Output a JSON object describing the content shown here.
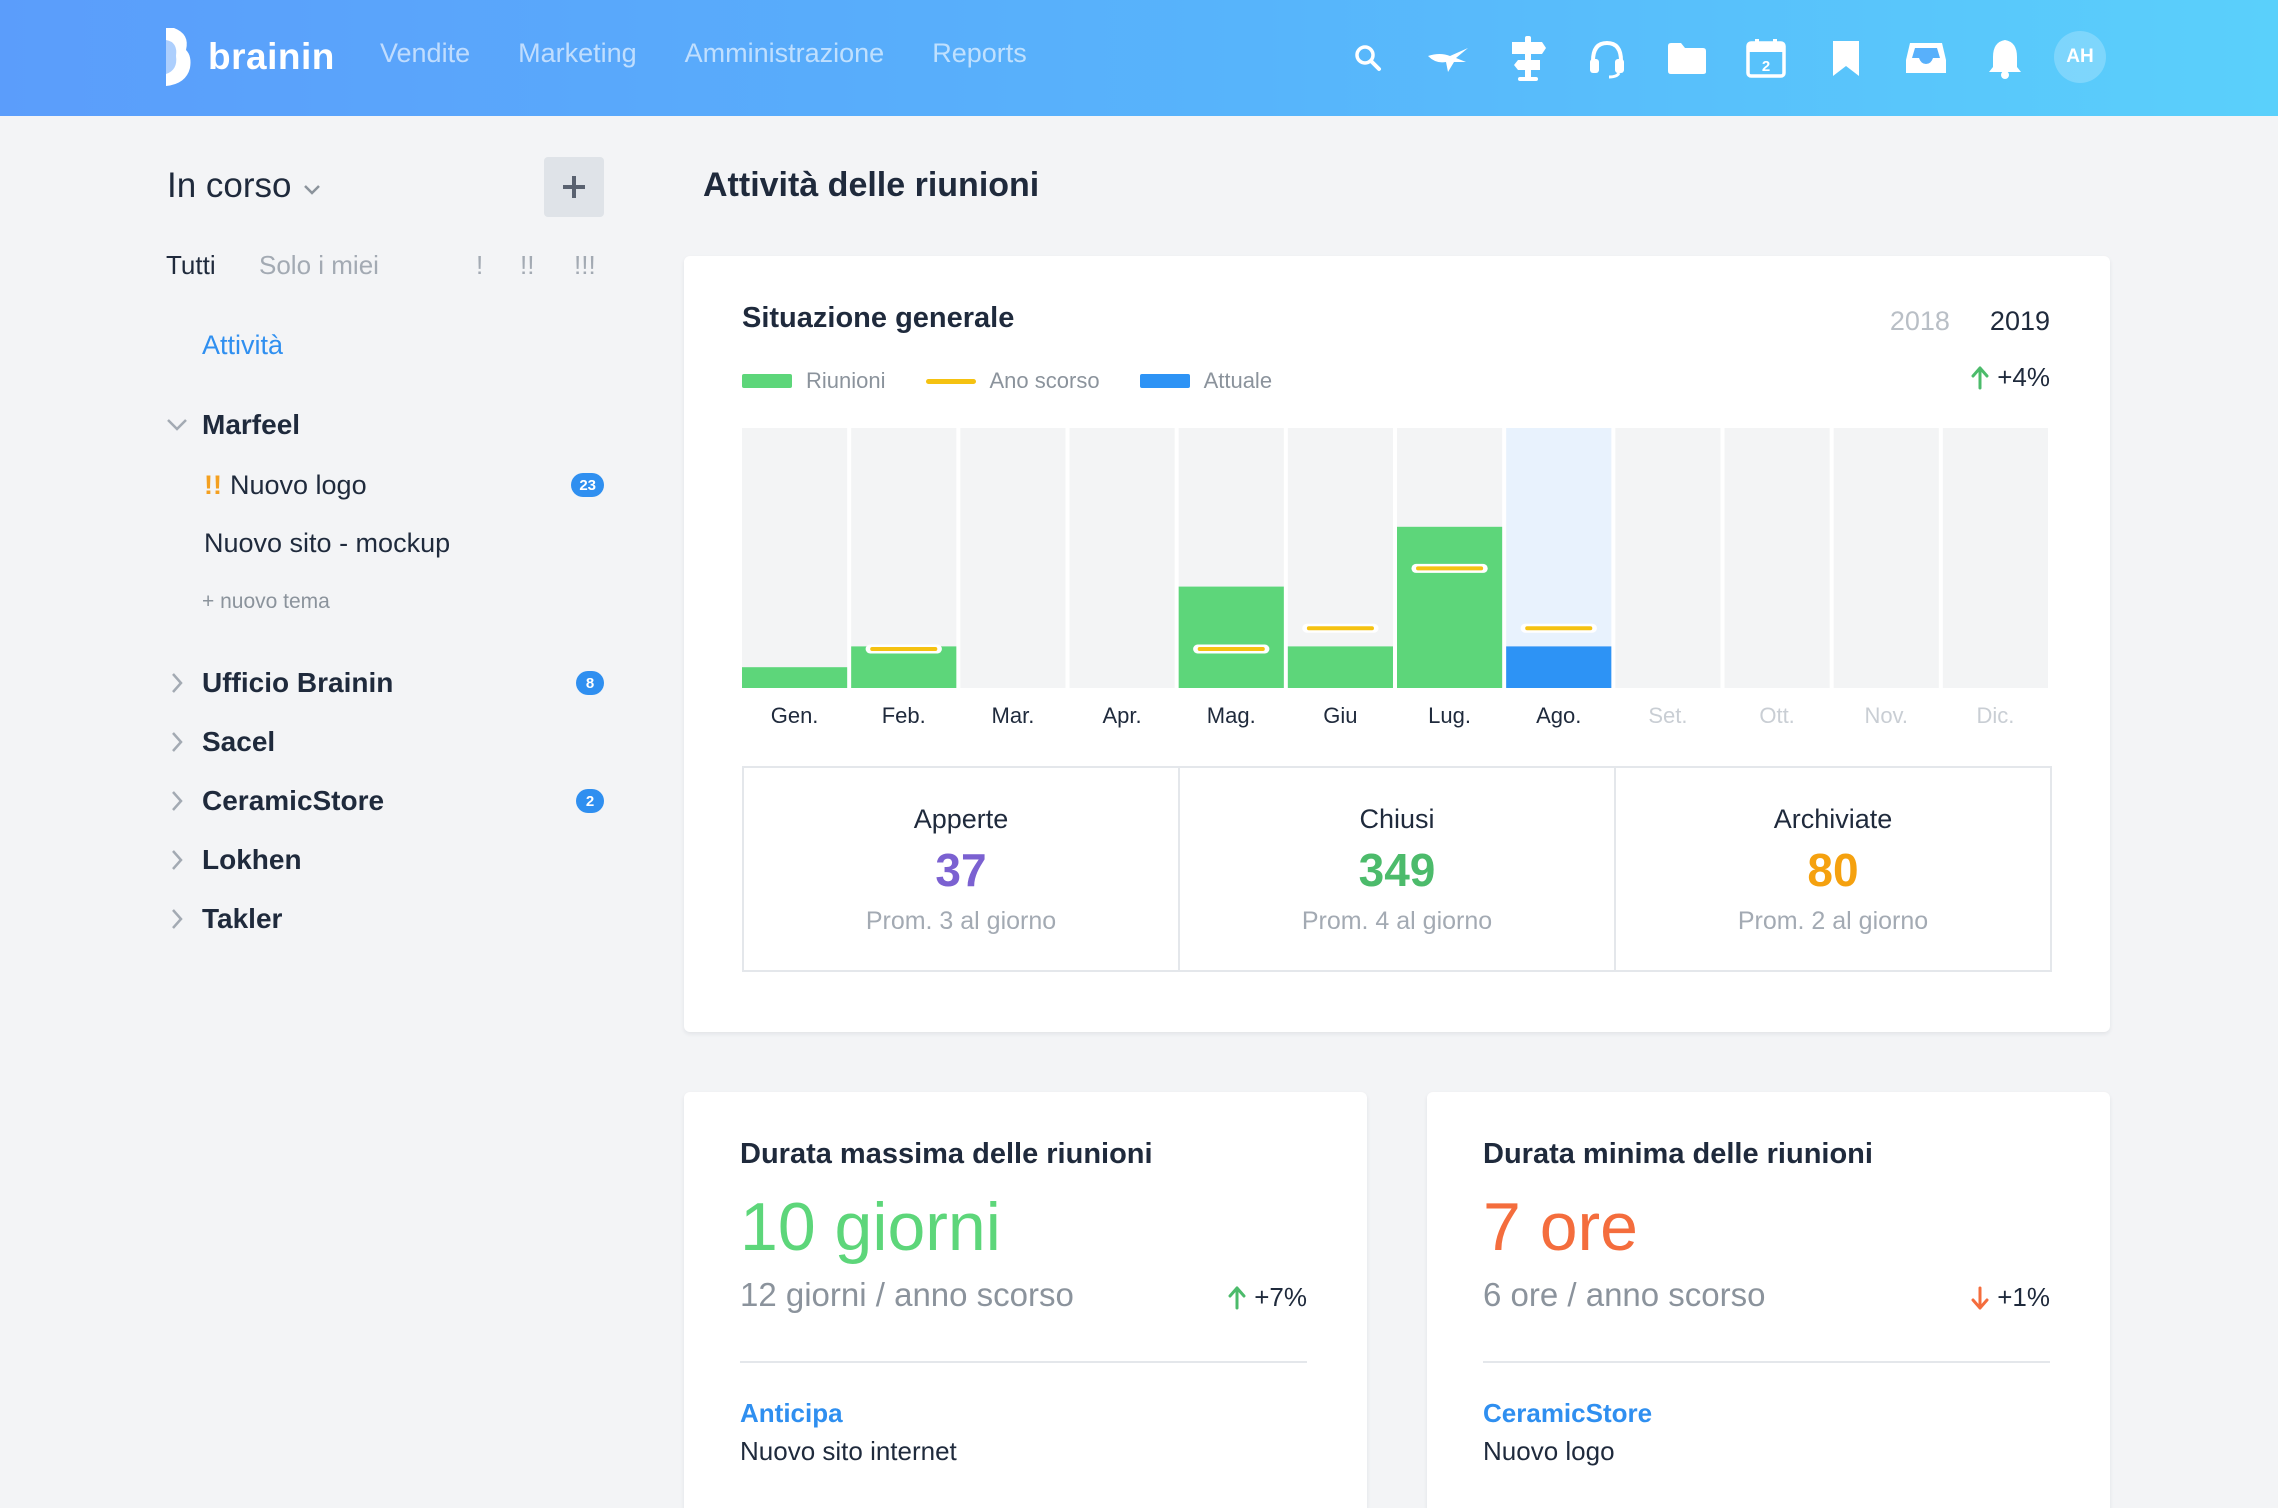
{
  "brand": {
    "name": "brainin"
  },
  "nav": [
    "Vendite",
    "Marketing",
    "Amministrazione",
    "Reports"
  ],
  "top_icons": [
    "search-icon",
    "comet-icon",
    "signpost-icon",
    "headset-icon",
    "folder-icon",
    "calendar-icon",
    "bookmark-icon",
    "inbox-icon",
    "bell-icon"
  ],
  "calendar_day": "2",
  "user": {
    "initials": "AH"
  },
  "sidebar": {
    "title": "In corso",
    "filters": {
      "all": "Tutti",
      "mine": "Solo i miei",
      "p1": "!",
      "p2": "!!",
      "p3": "!!!"
    },
    "active": "Attività",
    "groups": [
      {
        "label": "Marfeel",
        "expanded": true
      },
      {
        "label": "Ufficio Brainin",
        "badge": "8"
      },
      {
        "label": "Sacel"
      },
      {
        "label": "CeramicStore",
        "badge": "2"
      },
      {
        "label": "Lokhen"
      },
      {
        "label": "Takler"
      }
    ],
    "marfeel_items": [
      {
        "priority": "!!",
        "label": "Nuovo logo",
        "badge": "23"
      },
      {
        "label": "Nuovo sito - mockup"
      }
    ],
    "new_topic": "+ nuovo tema"
  },
  "main": {
    "title": "Attività delle riunioni",
    "overview": {
      "title": "Situazione generale",
      "years": [
        "2018",
        "2019"
      ],
      "selected_year": "2019",
      "legend": {
        "meetings": "Riunioni",
        "last_year": "Ano scorso",
        "current": "Attuale"
      },
      "delta": "+4%"
    },
    "stats": [
      {
        "label": "Apperte",
        "value": "37",
        "sub": "Prom. 3 al giorno",
        "color": "#7b61d1"
      },
      {
        "label": "Chiusi",
        "value": "349",
        "sub": "Prom. 4 al giorno",
        "color": "#4cbb6b"
      },
      {
        "label": "Archiviate",
        "value": "80",
        "sub": "Prom. 2 al giorno",
        "color": "#f5a10f"
      }
    ],
    "max_duration": {
      "title": "Durata massima delle riunioni",
      "value": "10 giorni",
      "sub": "12 giorni / anno scorso",
      "delta": "+7%",
      "project": "Anticipa",
      "item": "Nuovo sito internet"
    },
    "min_duration": {
      "title": "Durata minima delle riunioni",
      "value": "7 ore",
      "sub": "6 ore / anno scorso",
      "delta": "+1%",
      "project": "CeramicStore",
      "item": "Nuovo logo"
    }
  },
  "colors": {
    "green": "#5dd67a",
    "yellow": "#f5c211",
    "blue": "#2d93f5",
    "track": "#f3f4f5",
    "track_current": "#e8f2fd",
    "accent": "#2f8ff0"
  },
  "chart_data": {
    "type": "bar",
    "categories": [
      "Gen.",
      "Feb.",
      "Mar.",
      "Apr.",
      "Mag.",
      "Giu",
      "Lug.",
      "Ago.",
      "Set.",
      "Ott.",
      "Nov.",
      "Dic."
    ],
    "series": [
      {
        "name": "Riunioni",
        "values": [
          8,
          16,
          0,
          0,
          39,
          16,
          62,
          16,
          null,
          null,
          null,
          null
        ]
      },
      {
        "name": "Ano scorso",
        "values": [
          null,
          15,
          null,
          null,
          15,
          23,
          46,
          23,
          null,
          null,
          null,
          null
        ]
      }
    ],
    "current_index": 7,
    "ylim": [
      0,
      100
    ],
    "grid": false
  }
}
